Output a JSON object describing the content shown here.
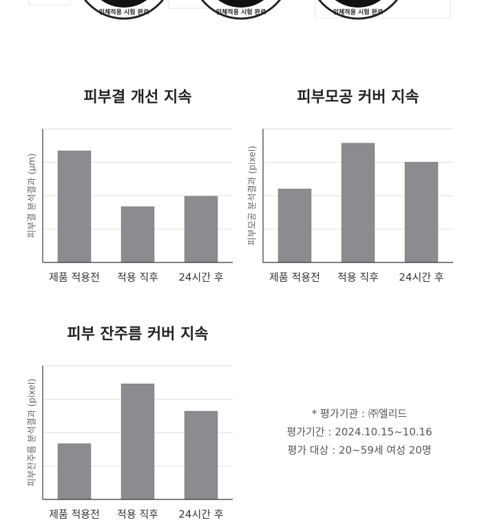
{
  "badges": [
    "인체적용 시험 완료",
    "인체적용 시험 완료",
    "인체적용 시험 완료"
  ],
  "notes": [
    "* 평가기관 : ㈜엘리드",
    "평가기간 : 2024.10.15~10.16",
    "평가 대상 : 20~59세 여성 20명"
  ],
  "chart_data": [
    {
      "type": "bar",
      "title": "피부결 개선 지속",
      "y_label": "피부결 분석결과 (μm)",
      "categories": [
        "제품 적용전",
        "적용 직후",
        "24시간 후"
      ],
      "values": [
        3.34,
        1.67,
        1.98
      ],
      "color": "#8c8c90",
      "ylim": [
        0,
        4
      ],
      "yticks": [
        1,
        2,
        3,
        4
      ],
      "grid": true
    },
    {
      "type": "bar",
      "title": "피부모공 커버 지속",
      "y_label": "피부모공 분석결과 (pixel)",
      "categories": [
        "제품 적용전",
        "적용 직후",
        "24시간 후"
      ],
      "values": [
        2.2,
        3.57,
        3.0
      ],
      "color": "#8c8c90",
      "ylim": [
        0,
        4
      ],
      "yticks": [
        1,
        2,
        3,
        4
      ],
      "grid": true
    },
    {
      "type": "bar",
      "title": "피부 잔주름 커버 지속",
      "y_label": "피부잔주름 분석결과 (pixel)",
      "categories": [
        "제품 적용전",
        "적용 직후",
        "24시간 후"
      ],
      "values": [
        1.67,
        3.46,
        2.64
      ],
      "color": "#8c8c90",
      "ylim": [
        0,
        4
      ],
      "yticks": [
        1,
        2,
        3,
        4
      ],
      "grid": true
    }
  ]
}
